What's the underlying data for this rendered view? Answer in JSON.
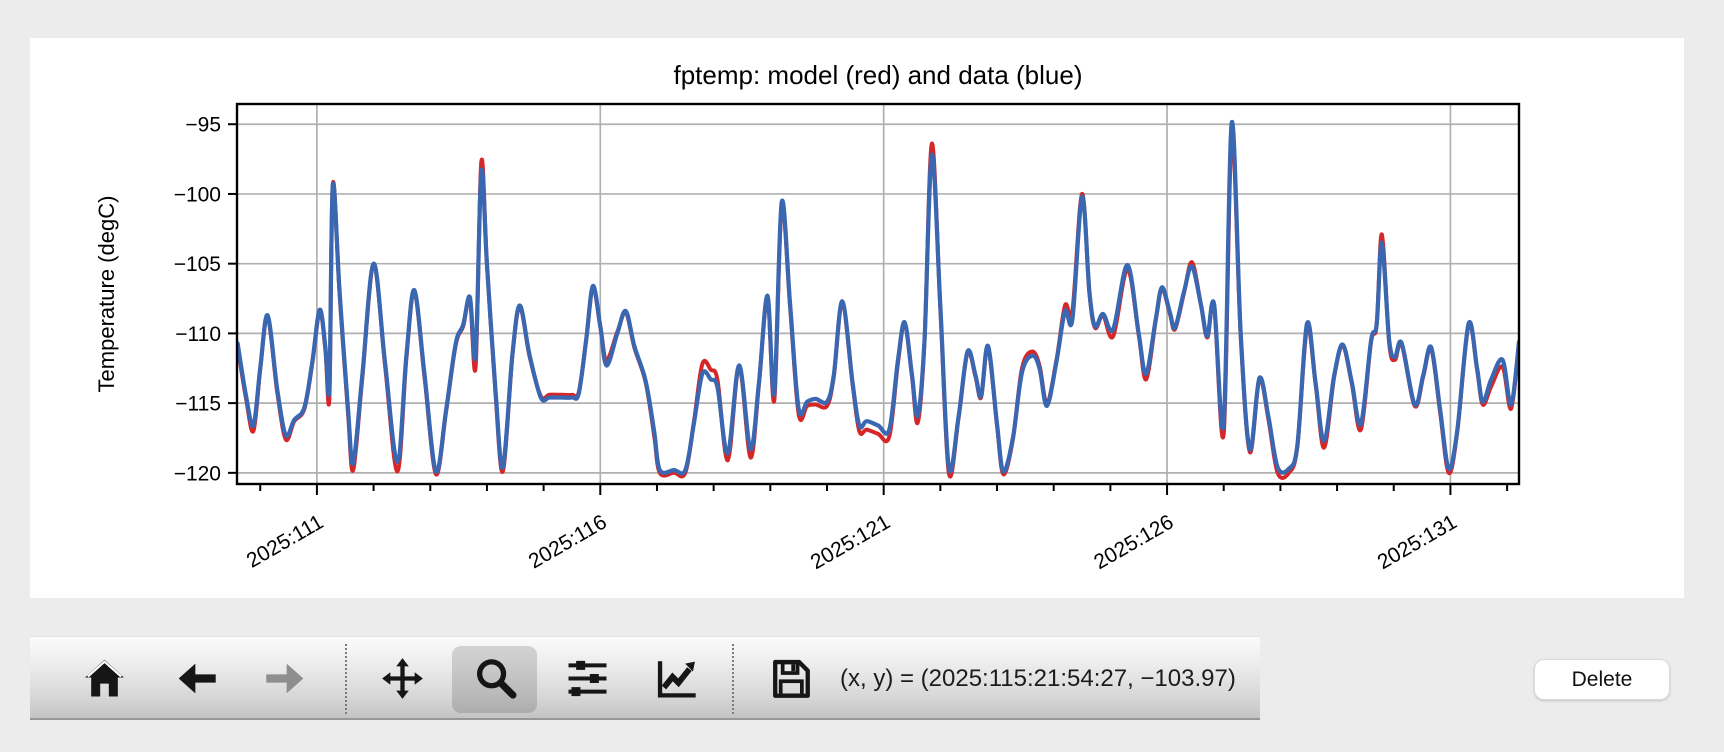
{
  "window": {
    "background": "#ececec",
    "card_background": "#ffffff"
  },
  "chart_data": {
    "type": "line",
    "title": "fptemp: model (red) and data (blue)",
    "ylabel": "Temperature (degC)",
    "xlabel": "",
    "grid": true,
    "legend": "none",
    "ylim": [
      -120.8,
      -93.55
    ],
    "xlim": [
      109.59,
      132.21
    ],
    "yticks": [
      -95,
      -100,
      -105,
      -110,
      -115,
      -120
    ],
    "xticks": {
      "major_days": [
        111,
        116,
        121,
        126,
        131
      ],
      "major_labels": [
        "2025:111",
        "2025:116",
        "2025:121",
        "2025:126",
        "2025:131"
      ],
      "minor_day_step": 1
    },
    "colors": {
      "model": "#d62728",
      "data": "#3a67b1",
      "grid": "#b0b0b0",
      "spine": "#000000"
    },
    "x_day": [
      109.6,
      109.75,
      109.88,
      110.0,
      110.13,
      110.3,
      110.45,
      110.6,
      110.78,
      110.92,
      111.05,
      111.15,
      111.22,
      111.28,
      111.4,
      111.55,
      111.64,
      111.8,
      112.0,
      112.2,
      112.42,
      112.58,
      112.72,
      112.9,
      113.1,
      113.28,
      113.45,
      113.58,
      113.7,
      113.8,
      113.9,
      114.0,
      114.15,
      114.28,
      114.45,
      114.58,
      114.75,
      114.95,
      115.1,
      115.3,
      115.5,
      115.62,
      115.75,
      115.87,
      116.0,
      116.11,
      116.3,
      116.45,
      116.6,
      116.8,
      116.95,
      117.05,
      117.3,
      117.5,
      117.65,
      117.8,
      117.95,
      118.07,
      118.25,
      118.45,
      118.65,
      118.8,
      118.95,
      119.07,
      119.2,
      119.35,
      119.5,
      119.65,
      119.8,
      120.0,
      120.12,
      120.27,
      120.45,
      120.57,
      120.7,
      120.9,
      121.1,
      121.25,
      121.37,
      121.5,
      121.6,
      121.72,
      121.85,
      122.0,
      122.15,
      122.32,
      122.48,
      122.62,
      122.72,
      122.84,
      123.0,
      123.11,
      123.28,
      123.44,
      123.62,
      123.75,
      123.88,
      124.05,
      124.2,
      124.33,
      124.5,
      124.63,
      124.73,
      124.87,
      125.05,
      125.3,
      125.5,
      125.63,
      125.8,
      125.91,
      126.05,
      126.14,
      126.3,
      126.44,
      126.6,
      126.71,
      126.83,
      127.0,
      127.14,
      127.3,
      127.46,
      127.63,
      127.79,
      127.95,
      128.15,
      128.3,
      128.47,
      128.62,
      128.77,
      128.95,
      129.1,
      129.26,
      129.42,
      129.6,
      129.7,
      129.79,
      129.92,
      130.02,
      130.14,
      130.37,
      130.52,
      130.66,
      130.82,
      130.97,
      131.12,
      131.32,
      131.47,
      131.57,
      131.72,
      131.92,
      132.07,
      132.21
    ],
    "series": [
      {
        "name": "model",
        "y": [
          -110.9,
          -114.7,
          -117.0,
          -112.6,
          -108.8,
          -114.2,
          -117.6,
          -116.3,
          -115.4,
          -112.1,
          -108.4,
          -111.2,
          -114.6,
          -99.3,
          -107.2,
          -115.8,
          -119.8,
          -113.2,
          -105.1,
          -112.2,
          -119.9,
          -111.7,
          -107.0,
          -113.2,
          -120.1,
          -115.6,
          -110.8,
          -109.5,
          -107.5,
          -112.4,
          -97.7,
          -105.0,
          -114.2,
          -119.9,
          -111.6,
          -108.1,
          -111.6,
          -114.5,
          -114.4,
          -114.4,
          -114.4,
          -114.2,
          -110.5,
          -106.7,
          -109.5,
          -111.9,
          -109.9,
          -108.5,
          -111.0,
          -113.5,
          -117.3,
          -120.0,
          -120.0,
          -120.0,
          -116.4,
          -112.2,
          -112.6,
          -113.4,
          -119.1,
          -112.4,
          -118.9,
          -113.6,
          -107.4,
          -114.8,
          -100.9,
          -108.2,
          -115.8,
          -115.2,
          -115.1,
          -115.2,
          -113.1,
          -107.8,
          -113.6,
          -117.0,
          -116.9,
          -117.2,
          -117.4,
          -112.2,
          -109.3,
          -113.1,
          -116.4,
          -110.6,
          -96.4,
          -108.2,
          -120.0,
          -116.1,
          -111.4,
          -113.1,
          -114.6,
          -111.0,
          -116.6,
          -120.1,
          -117.6,
          -112.5,
          -111.3,
          -112.3,
          -115.0,
          -111.9,
          -108.0,
          -108.4,
          -100.0,
          -107.1,
          -109.6,
          -108.7,
          -110.2,
          -105.4,
          -110.1,
          -113.3,
          -109.1,
          -106.8,
          -108.6,
          -109.7,
          -107.1,
          -104.9,
          -108.0,
          -110.3,
          -108.0,
          -117.2,
          -95.8,
          -110.2,
          -118.5,
          -113.3,
          -116.2,
          -120.0,
          -120.0,
          -118.1,
          -109.6,
          -113.6,
          -118.2,
          -113.1,
          -110.9,
          -113.6,
          -116.9,
          -110.6,
          -109.4,
          -102.9,
          -110.7,
          -111.9,
          -110.8,
          -115.2,
          -113.1,
          -111.1,
          -115.7,
          -120.0,
          -117.1,
          -109.4,
          -112.6,
          -115.1,
          -113.8,
          -112.4,
          -115.4,
          -110.7
        ]
      },
      {
        "name": "data",
        "y": [
          -110.7,
          -114.5,
          -116.6,
          -112.5,
          -108.7,
          -114.0,
          -117.3,
          -116.2,
          -115.3,
          -112.0,
          -108.3,
          -111.0,
          -113.9,
          -99.4,
          -107.0,
          -115.5,
          -119.3,
          -113.0,
          -105.0,
          -112.0,
          -119.2,
          -111.5,
          -106.9,
          -113.0,
          -119.9,
          -115.5,
          -110.7,
          -109.4,
          -107.4,
          -111.6,
          -98.4,
          -105.0,
          -114.0,
          -119.6,
          -111.5,
          -108.0,
          -111.5,
          -114.6,
          -114.6,
          -114.6,
          -114.6,
          -114.3,
          -110.5,
          -106.6,
          -109.5,
          -112.3,
          -110.0,
          -108.4,
          -110.9,
          -113.4,
          -117.0,
          -119.8,
          -119.8,
          -119.8,
          -116.5,
          -112.9,
          -113.3,
          -113.9,
          -118.6,
          -112.3,
          -118.3,
          -113.5,
          -107.3,
          -114.3,
          -100.6,
          -108.0,
          -115.4,
          -114.9,
          -114.7,
          -114.9,
          -113.0,
          -107.7,
          -113.5,
          -116.6,
          -116.3,
          -116.6,
          -116.9,
          -112.0,
          -109.2,
          -113.0,
          -115.9,
          -110.5,
          -97.2,
          -108.0,
          -119.6,
          -116.0,
          -111.3,
          -113.0,
          -114.5,
          -110.9,
          -116.5,
          -119.9,
          -117.5,
          -112.8,
          -111.6,
          -112.5,
          -115.2,
          -112.0,
          -108.4,
          -109.0,
          -100.2,
          -107.0,
          -109.5,
          -108.6,
          -109.7,
          -105.1,
          -110.0,
          -112.9,
          -109.0,
          -106.7,
          -108.5,
          -109.6,
          -107.0,
          -105.2,
          -108.0,
          -110.2,
          -107.9,
          -116.5,
          -94.9,
          -110.0,
          -118.3,
          -113.2,
          -116.0,
          -119.6,
          -119.7,
          -118.0,
          -109.3,
          -113.5,
          -117.7,
          -113.0,
          -110.8,
          -113.5,
          -116.5,
          -110.5,
          -109.3,
          -103.5,
          -110.5,
          -111.7,
          -110.7,
          -115.1,
          -113.0,
          -111.0,
          -115.5,
          -119.7,
          -117.0,
          -109.3,
          -112.5,
          -114.9,
          -113.3,
          -111.9,
          -115.1,
          -110.6
        ]
      }
    ]
  },
  "toolbar": {
    "buttons": [
      {
        "name": "home",
        "active": false,
        "disabled": false
      },
      {
        "name": "back",
        "active": false,
        "disabled": false
      },
      {
        "name": "forward",
        "active": false,
        "disabled": true
      },
      {
        "name": "pan",
        "active": false,
        "disabled": false
      },
      {
        "name": "zoom",
        "active": true,
        "disabled": false
      },
      {
        "name": "subplots",
        "active": false,
        "disabled": false
      },
      {
        "name": "customize",
        "active": false,
        "disabled": false
      },
      {
        "name": "save",
        "active": false,
        "disabled": false
      }
    ],
    "status": "(x, y) = (2025:115:21:54:27, −103.97)"
  },
  "delete_button": {
    "label": "Delete"
  }
}
